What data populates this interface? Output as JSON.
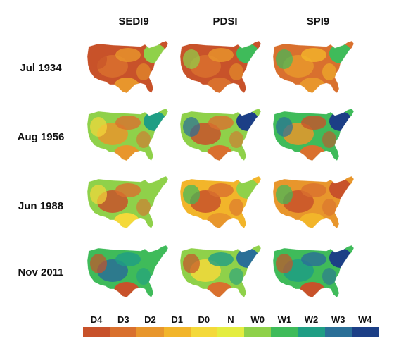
{
  "columns": [
    "SEDI9",
    "PDSI",
    "SPI9"
  ],
  "rows": [
    "Jul 1934",
    "Aug 1956",
    "Jun 1988",
    "Nov 2011"
  ],
  "legend": {
    "labels": [
      "D4",
      "D3",
      "D2",
      "D1",
      "D0",
      "N",
      "W0",
      "W1",
      "W2",
      "W3",
      "W4"
    ],
    "colors": [
      "#c8522a",
      "#d9702e",
      "#e8962c",
      "#f2b52a",
      "#f4d93a",
      "#e4ed40",
      "#8fd14a",
      "#3fbb5a",
      "#1f9e84",
      "#2a6f97",
      "#1c3f86"
    ]
  },
  "maps": [
    [
      {
        "base": "#c8522a",
        "accents": [
          "#d9702e",
          "#e8962c",
          "#c8522a"
        ],
        "east": "#8fd14a",
        "south": "#e8962c"
      },
      {
        "base": "#c8522a",
        "accents": [
          "#d9702e",
          "#e8962c",
          "#8fd14a"
        ],
        "east": "#3fbb5a",
        "south": "#d9702e"
      },
      {
        "base": "#d9702e",
        "accents": [
          "#e8962c",
          "#f2b52a",
          "#3fbb5a"
        ],
        "east": "#3fbb5a",
        "south": "#e8962c"
      }
    ],
    [
      {
        "base": "#8fd14a",
        "accents": [
          "#e8962c",
          "#d9702e",
          "#f4d93a"
        ],
        "east": "#1f9e84",
        "south": "#e8962c"
      },
      {
        "base": "#8fd14a",
        "accents": [
          "#c8522a",
          "#d9702e",
          "#2a6f97"
        ],
        "east": "#1c3f86",
        "south": "#d9702e"
      },
      {
        "base": "#3fbb5a",
        "accents": [
          "#e8962c",
          "#c8522a",
          "#2a6f97"
        ],
        "east": "#1c3f86",
        "south": "#d9702e"
      }
    ],
    [
      {
        "base": "#8fd14a",
        "accents": [
          "#c8522a",
          "#d9702e",
          "#f4d93a"
        ],
        "east": "#8fd14a",
        "south": "#f4d93a"
      },
      {
        "base": "#f2b52a",
        "accents": [
          "#c8522a",
          "#d9702e",
          "#3fbb5a"
        ],
        "east": "#8fd14a",
        "south": "#e8962c"
      },
      {
        "base": "#e8962c",
        "accents": [
          "#c8522a",
          "#d9702e",
          "#3fbb5a"
        ],
        "east": "#c8522a",
        "south": "#f2b52a"
      }
    ],
    [
      {
        "base": "#3fbb5a",
        "accents": [
          "#2a6f97",
          "#1f9e84",
          "#c8522a"
        ],
        "east": "#3fbb5a",
        "south": "#c8522a"
      },
      {
        "base": "#8fd14a",
        "accents": [
          "#f4d93a",
          "#1f9e84",
          "#c8522a"
        ],
        "east": "#2a6f97",
        "south": "#d9702e"
      },
      {
        "base": "#3fbb5a",
        "accents": [
          "#1f9e84",
          "#2a6f97",
          "#c8522a"
        ],
        "east": "#1c3f86",
        "south": "#c8522a"
      }
    ]
  ]
}
